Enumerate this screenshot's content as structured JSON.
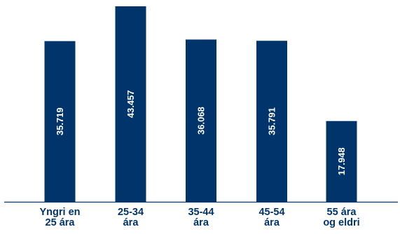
{
  "chart_data": {
    "type": "bar",
    "categories": [
      [
        "Yngri en",
        "25 ára"
      ],
      [
        "25-34",
        "ára"
      ],
      [
        "35-44",
        "ára"
      ],
      [
        "45-54",
        "ára"
      ],
      [
        "55 ára",
        "og eldri"
      ]
    ],
    "values": [
      35719,
      43457,
      36068,
      35791,
      17948
    ],
    "value_labels": [
      "35.719",
      "43.457",
      "36.068",
      "35.791",
      "17.948"
    ],
    "ylim": [
      0,
      43457
    ],
    "grid": false,
    "legend": "none",
    "colors": {
      "bar": "#00346b",
      "bar_label": "#ffffff",
      "axis": "#00346b",
      "category_label": "#00346b"
    }
  }
}
